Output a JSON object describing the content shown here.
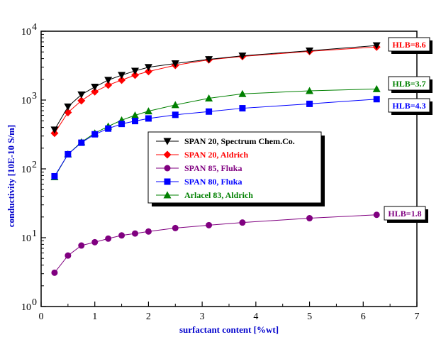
{
  "chart_data": {
    "type": "line",
    "x_scale": "linear",
    "y_scale": "log",
    "xlabel": "surfactant content [%wt]",
    "ylabel": "conductivity [10E-10 S/m]",
    "xlim": [
      0,
      7
    ],
    "ylim": [
      1,
      10000
    ],
    "x_ticks": [
      "0",
      "1",
      "2",
      "3",
      "4",
      "5",
      "6",
      "7"
    ],
    "y_tick_bases": [
      "10",
      "10",
      "10",
      "10",
      "10"
    ],
    "y_tick_exponents": [
      "0",
      "1",
      "2",
      "3",
      "4"
    ],
    "legend_position": "center",
    "series": [
      {
        "name": "SPAN 20, Spectrum Chem.Co.",
        "color": "#000000",
        "marker": "triangle-down",
        "x": [
          0.25,
          0.5,
          0.75,
          1.0,
          1.25,
          1.5,
          1.75,
          2.0,
          2.5,
          3.125,
          3.75,
          5.0,
          6.25
        ],
        "y": [
          370,
          800,
          1200,
          1550,
          1950,
          2300,
          2650,
          3000,
          3400,
          3900,
          4400,
          5200,
          6200
        ]
      },
      {
        "name": "SPAN 20, Aldrich",
        "color": "#ff0000",
        "marker": "diamond",
        "x": [
          0.25,
          0.5,
          0.75,
          1.0,
          1.25,
          1.5,
          1.75,
          2.0,
          2.5,
          3.125,
          3.75,
          5.0,
          6.25
        ],
        "y": [
          330,
          660,
          980,
          1320,
          1650,
          1950,
          2300,
          2600,
          3200,
          3850,
          4300,
          5100,
          5900
        ]
      },
      {
        "name": "SPAN 85, Fluka",
        "color": "#800080",
        "marker": "circle",
        "x": [
          0.25,
          0.5,
          0.75,
          1.0,
          1.25,
          1.5,
          1.75,
          2.0,
          2.5,
          3.125,
          3.75,
          5.0,
          6.25
        ],
        "y": [
          3.1,
          5.5,
          7.7,
          8.6,
          9.7,
          10.8,
          11.5,
          12.3,
          13.8,
          15.2,
          16.6,
          19.2,
          21.5
        ]
      },
      {
        "name": "SPAN 80, Fluka",
        "color": "#0000ff",
        "marker": "square",
        "x": [
          0.25,
          0.5,
          0.75,
          1.0,
          1.25,
          1.5,
          1.75,
          2.0,
          2.5,
          3.125,
          3.75,
          5.0,
          6.25
        ],
        "y": [
          78,
          163,
          240,
          318,
          385,
          450,
          495,
          540,
          610,
          680,
          760,
          880,
          1030
        ]
      },
      {
        "name": "Arlacel 83, Aldrich",
        "color": "#008000",
        "marker": "triangle-up",
        "x": [
          0.25,
          0.5,
          0.75,
          1.0,
          1.25,
          1.5,
          1.75,
          2.0,
          2.5,
          3.125,
          3.75,
          5.0,
          6.25
        ],
        "y": [
          76,
          163,
          245,
          330,
          415,
          510,
          600,
          690,
          850,
          1060,
          1230,
          1360,
          1450
        ]
      }
    ],
    "annotations": [
      {
        "text": "HLB=8.6",
        "color": "#ff0000"
      },
      {
        "text": "HLB=3.7",
        "color": "#008000"
      },
      {
        "text": "HLB=4.3",
        "color": "#0000ff"
      },
      {
        "text": "HLB=1.8",
        "color": "#800080"
      }
    ]
  }
}
